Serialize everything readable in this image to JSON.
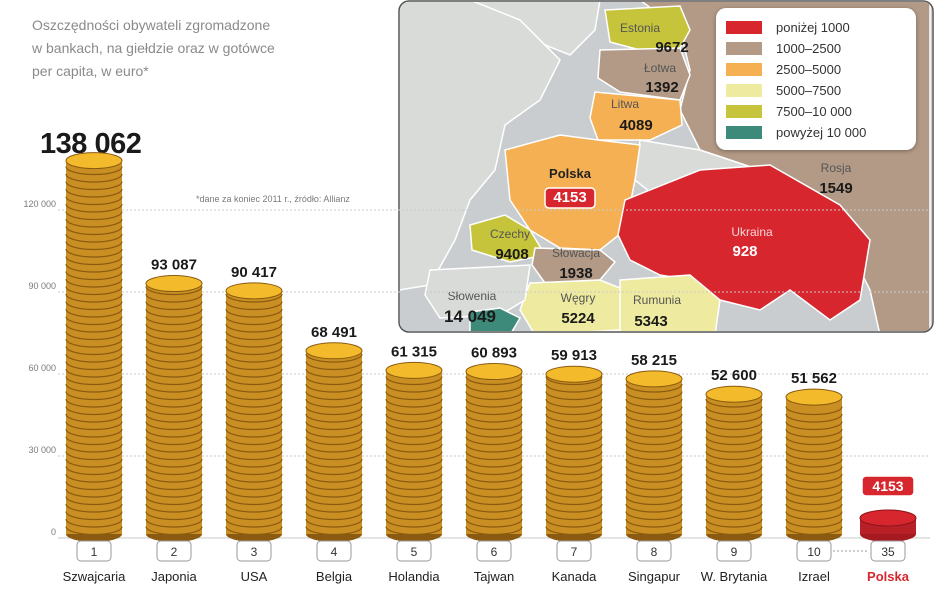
{
  "description_lines": [
    "Oszczędności obywateli zgromadzone",
    "w bankach, na giełdzie oraz w gotówce",
    "per capita, w euro*"
  ],
  "footnote": "*dane za koniec 2011 r., źródło: Allianz",
  "top_value_label": "138 062",
  "colors": {
    "coin_body": "#c98f22",
    "coin_rim": "#8a5a10",
    "coin_top": "#f3bb2c",
    "polska_coin": "#d8262e",
    "grid": "#c8c8c8",
    "axis_text": "#7a7a7a",
    "value_text": "#1a1a1a",
    "polska_label": "#d8262e"
  },
  "chart_data": {
    "type": "bar",
    "categories": [
      "Szwajcaria",
      "Japonia",
      "USA",
      "Belgia",
      "Holandia",
      "Tajwan",
      "Kanada",
      "Singapur",
      "W. Brytania",
      "Izrael",
      "Polska"
    ],
    "ranks": [
      "1",
      "2",
      "3",
      "4",
      "5",
      "6",
      "7",
      "8",
      "9",
      "10",
      "35"
    ],
    "values": [
      138062,
      93087,
      90417,
      68491,
      61315,
      60893,
      59913,
      58215,
      52600,
      51562,
      4153
    ],
    "value_labels": [
      "138 062",
      "93 087",
      "90 417",
      "68 491",
      "61 315",
      "60 893",
      "59 913",
      "58 215",
      "52 600",
      "51 562",
      "4153"
    ],
    "yticks": [
      0,
      30000,
      60000,
      90000,
      120000
    ],
    "ytick_labels": [
      "0",
      "30 000",
      "60 000",
      "90 000",
      "120 000"
    ],
    "ylim": [
      0,
      140000
    ],
    "grid": true,
    "highlight": "Polska"
  },
  "map": {
    "legend": [
      {
        "label": "poniżej 1000",
        "color": "#d8262e"
      },
      {
        "label": "1000–2500",
        "color": "#b39a86"
      },
      {
        "label": "2500–5000",
        "color": "#f5b054"
      },
      {
        "label": "5000–7500",
        "color": "#eeeba0"
      },
      {
        "label": "7500–10 000",
        "color": "#c5c43a"
      },
      {
        "label": "powyżej 10 000",
        "color": "#3e8a7a"
      }
    ],
    "regions": [
      {
        "name": "Estonia",
        "value": "9672"
      },
      {
        "name": "Łotwa",
        "value": "1392"
      },
      {
        "name": "Litwa",
        "value": "4089"
      },
      {
        "name": "Polska",
        "value": "4153"
      },
      {
        "name": "Rosja",
        "value": "1549"
      },
      {
        "name": "Ukraina",
        "value": "928"
      },
      {
        "name": "Czechy",
        "value": "9408"
      },
      {
        "name": "Słowacja",
        "value": "1938"
      },
      {
        "name": "Słowenia",
        "value": "14 049"
      },
      {
        "name": "Węgry",
        "value": "5224"
      },
      {
        "name": "Rumunia",
        "value": "5343"
      }
    ]
  }
}
